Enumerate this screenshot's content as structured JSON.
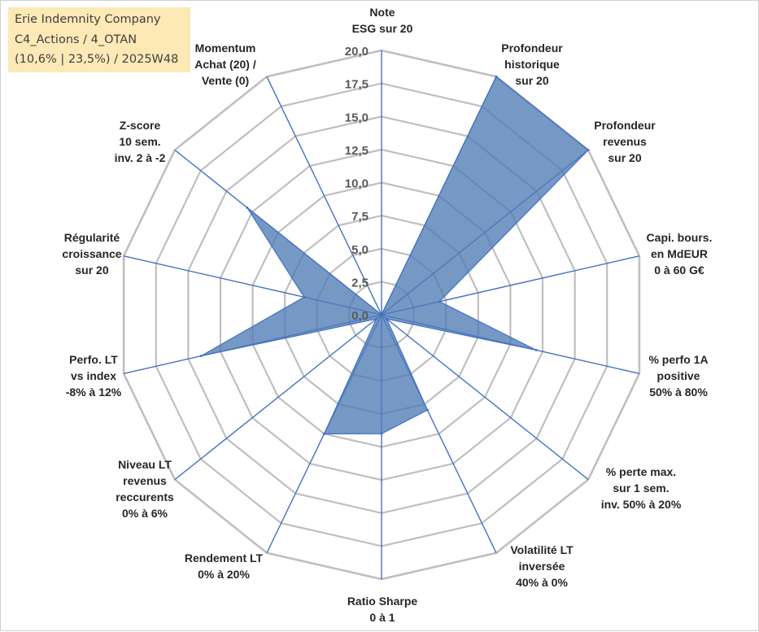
{
  "title_box": {
    "line1": "Erie Indemnity Company",
    "line2": "C4_Actions / 4_OTAN",
    "line3": "(10,6% | 23,5%) / 2025W48"
  },
  "colors": {
    "grid": "#bfbfbf",
    "spoke": "#4472c4",
    "fill": "#4f7bb5",
    "fill_stroke": "#4472c4",
    "title_bg": "#fde9b6"
  },
  "chart_data": {
    "type": "radar",
    "rlim": [
      0,
      20
    ],
    "grid": true,
    "ticks": [
      "0,0",
      "2,5",
      "5,0",
      "7,5",
      "10,0",
      "12,5",
      "15,0",
      "17,5",
      "20,0"
    ],
    "tick_values": [
      0,
      2.5,
      5,
      7.5,
      10,
      12.5,
      15,
      17.5,
      20
    ],
    "axes": [
      {
        "lines": [
          "Note",
          "ESG sur 20"
        ],
        "value": 0
      },
      {
        "lines": [
          "Profondeur",
          "historique",
          "sur 20"
        ],
        "value": 20
      },
      {
        "lines": [
          "Profondeur",
          "revenus",
          "sur 20"
        ],
        "value": 20
      },
      {
        "lines": [
          "Capi. bours.",
          "en MdEUR",
          "0 à 60 G€"
        ],
        "value": 4.5
      },
      {
        "lines": [
          "% perfo 1A",
          "positive",
          "50% à 80%"
        ],
        "value": 12
      },
      {
        "lines": [
          "% perte max.",
          "sur 1 sem.",
          "inv. 50% à 20%"
        ],
        "value": 0.5
      },
      {
        "lines": [
          "Volatilité LT",
          "inversée",
          "40% à 0%"
        ],
        "value": 8
      },
      {
        "lines": [
          "Ratio Sharpe",
          "0 à 1"
        ],
        "value": 9
      },
      {
        "lines": [
          "Rendement LT",
          "0% à 20%"
        ],
        "value": 10
      },
      {
        "lines": [
          "Niveau LT",
          "revenus",
          "reccurents",
          "0% à 6%"
        ],
        "value": 0.5
      },
      {
        "lines": [
          "Perfo. LT",
          "vs index",
          "-8% à 12%"
        ],
        "value": 14
      },
      {
        "lines": [
          "Régularité",
          "croissance",
          "sur 20"
        ],
        "value": 6
      },
      {
        "lines": [
          "Z-score",
          "10 sem.",
          "inv. 2 à -2"
        ],
        "value": 13
      },
      {
        "lines": [
          "Momentum",
          "Achat (20) /",
          "Vente (0)"
        ],
        "value": 0
      }
    ]
  }
}
